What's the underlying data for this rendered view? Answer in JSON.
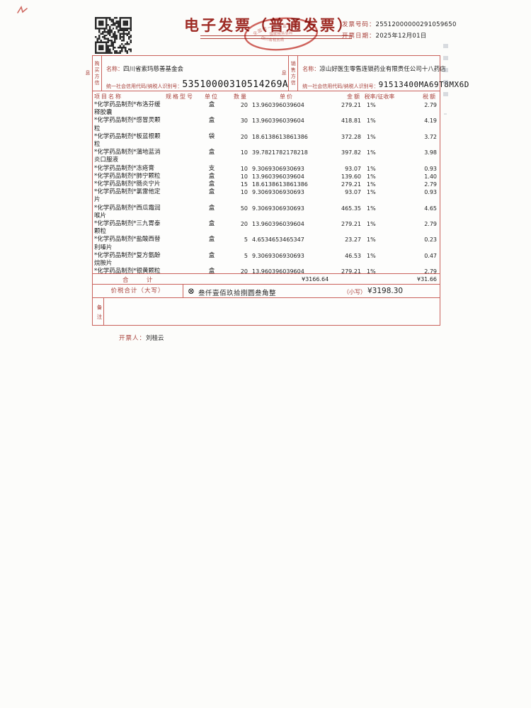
{
  "header": {
    "title": "电子发票（普通发票）",
    "invoice_no_label": "发票号码：",
    "invoice_no": "25512000000291059650",
    "date_label": "开票日期：",
    "date": "2025年12月01日",
    "qr_icon": "qr-code-icon",
    "stamp": {
      "top": "全国统一发票监制章",
      "middle": "国家税务总局",
      "bottom": "四川省税务局"
    }
  },
  "buyer": {
    "side_label": "购买方信息",
    "name_label": "名称：",
    "name": "四川省索玛慈善基金会",
    "tax_id_label": "统一社会信用代码/纳税人识别号：",
    "tax_id": "53510000310514269A"
  },
  "seller": {
    "side_label": "销售方信息",
    "name_label": "名称：",
    "name": "凉山好医生零售连锁药业有限责任公司十八药店",
    "tax_id_label": "统一社会信用代码/纳税人识别号：",
    "tax_id": "91513400MA69T8MX6D"
  },
  "table": {
    "headers": [
      "项目名称",
      "规格型号",
      "单位",
      "数量",
      "单价",
      "金额",
      "税率/征收率",
      "税额"
    ],
    "items": [
      {
        "name": "*化学药品制剂*布洛芬缓释胶囊",
        "spec": "",
        "unit": "盒",
        "qty": "20",
        "price": "13.960396039604",
        "amount": "279.21",
        "rate": "1%",
        "tax": "2.79"
      },
      {
        "name": "*化学药品制剂*感冒灵颗粒",
        "spec": "",
        "unit": "盒",
        "qty": "30",
        "price": "13.960396039604",
        "amount": "418.81",
        "rate": "1%",
        "tax": "4.19"
      },
      {
        "name": "*化学药品制剂*板蓝根颗粒",
        "spec": "",
        "unit": "袋",
        "qty": "20",
        "price": "18.6138613861386",
        "amount": "372.28",
        "rate": "1%",
        "tax": "3.72"
      },
      {
        "name": "*化学药品制剂*蒲地蓝消炎口服液",
        "spec": "",
        "unit": "盒",
        "qty": "10",
        "price": "39.7821782178218",
        "amount": "397.82",
        "rate": "1%",
        "tax": "3.98"
      },
      {
        "name": "*化学药品制剂*冻疮膏",
        "spec": "",
        "unit": "支",
        "qty": "10",
        "price": "9.3069306930693",
        "amount": "93.07",
        "rate": "1%",
        "tax": "0.93"
      },
      {
        "name": "*化学药品制剂*肺宁颗粒",
        "spec": "",
        "unit": "盒",
        "qty": "10",
        "price": "13.960396039604",
        "amount": "139.60",
        "rate": "1%",
        "tax": "1.40"
      },
      {
        "name": "*化学药品制剂*肠炎宁片",
        "spec": "",
        "unit": "盒",
        "qty": "15",
        "price": "18.6138613861386",
        "amount": "279.21",
        "rate": "1%",
        "tax": "2.79"
      },
      {
        "name": "*化学药品制剂*氯雷他定片",
        "spec": "",
        "unit": "盒",
        "qty": "10",
        "price": "9.3069306930693",
        "amount": "93.07",
        "rate": "1%",
        "tax": "0.93"
      },
      {
        "name": "*化学药品制剂*西瓜霜润喉片",
        "spec": "",
        "unit": "盒",
        "qty": "50",
        "price": "9.3069306930693",
        "amount": "465.35",
        "rate": "1%",
        "tax": "4.65"
      },
      {
        "name": "*化学药品制剂*三九胃泰颗粒",
        "spec": "",
        "unit": "盒",
        "qty": "20",
        "price": "13.960396039604",
        "amount": "279.21",
        "rate": "1%",
        "tax": "2.79"
      },
      {
        "name": "*化学药品制剂*盐酸西替利嗪片",
        "spec": "",
        "unit": "盒",
        "qty": "5",
        "price": "4.6534653465347",
        "amount": "23.27",
        "rate": "1%",
        "tax": "0.23"
      },
      {
        "name": "*化学药品制剂*复方氨酚烷胺片",
        "spec": "",
        "unit": "盒",
        "qty": "5",
        "price": "9.3069306930693",
        "amount": "46.53",
        "rate": "1%",
        "tax": "0.47"
      },
      {
        "name": "*化学药品制剂*银黄颗粒",
        "spec": "",
        "unit": "盒",
        "qty": "20",
        "price": "13.960396039604",
        "amount": "279.21",
        "rate": "1%",
        "tax": "2.79"
      }
    ],
    "total_label": "合　　　计",
    "total_amount": "¥3166.64",
    "total_tax": "¥31.66"
  },
  "summary": {
    "label": "价税合计（大写）",
    "amount_words_symbol": "⊗",
    "amount_words": "叁仟壹佰玖拾捌圆叁角整",
    "small_label": "（小写）",
    "amount_figures": "¥3198.30"
  },
  "remarks": {
    "side_label": "备注",
    "content": ""
  },
  "footer": {
    "issuer_label": "开票人：",
    "issuer": "刘桂云"
  },
  "colors": {
    "invoice_red": "#c9605a",
    "label_red": "#a8403a",
    "title_red": "#9e2b25",
    "stamp_red": "#c63c35",
    "text_dark": "#1d1d1d"
  }
}
